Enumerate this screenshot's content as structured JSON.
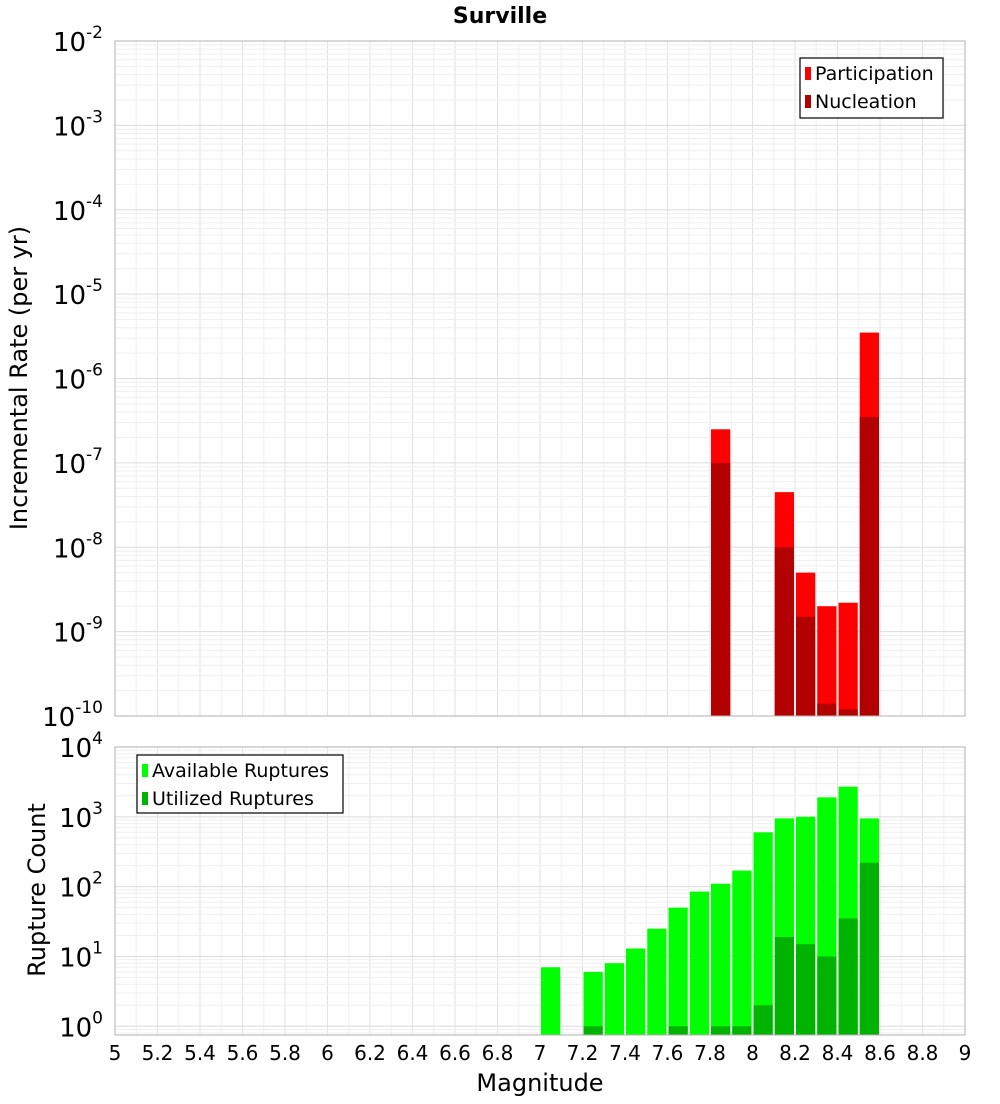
{
  "chart_data": [
    {
      "type": "bar",
      "title": "Surville",
      "xlabel": "",
      "ylabel": "Incremental Rate (per yr)",
      "yscale": "log",
      "ylim": [
        1e-10,
        0.01
      ],
      "xlim": [
        5,
        9
      ],
      "bin_width": 0.1,
      "legend_position": "top-right",
      "y_tick_labels": [
        {
          "base": "10",
          "exp": "-10",
          "value": 1e-10
        },
        {
          "base": "10",
          "exp": "-9",
          "value": 1e-09
        },
        {
          "base": "10",
          "exp": "-8",
          "value": 1e-08
        },
        {
          "base": "10",
          "exp": "-7",
          "value": 1e-07
        },
        {
          "base": "10",
          "exp": "-6",
          "value": 1e-06
        },
        {
          "base": "10",
          "exp": "-5",
          "value": 1e-05
        },
        {
          "base": "10",
          "exp": "-4",
          "value": 0.0001
        },
        {
          "base": "10",
          "exp": "-3",
          "value": 0.001
        },
        {
          "base": "10",
          "exp": "-2",
          "value": 0.01
        }
      ],
      "series": [
        {
          "name": "Participation",
          "color": "#ff0000",
          "x": [
            7.85,
            8.15,
            8.25,
            8.35,
            8.45,
            8.55
          ],
          "values": [
            2.5e-07,
            4.5e-08,
            5e-09,
            2e-09,
            2.2e-09,
            3.5e-06
          ]
        },
        {
          "name": "Nucleation",
          "color": "#b30000",
          "x": [
            7.85,
            8.15,
            8.25,
            8.35,
            8.45,
            8.55
          ],
          "values": [
            1e-07,
            1e-08,
            1.5e-09,
            1.4e-10,
            1.2e-10,
            3.5e-07
          ]
        }
      ]
    },
    {
      "type": "bar",
      "title": "",
      "xlabel": "Magnitude",
      "ylabel": "Rupture Count",
      "yscale": "log",
      "ylim": [
        0.75,
        10000
      ],
      "xlim": [
        5,
        9
      ],
      "bin_width": 0.1,
      "legend_position": "top-left",
      "x_tick_labels": [
        "5",
        "5.2",
        "5.4",
        "5.6",
        "5.8",
        "6",
        "6.2",
        "6.4",
        "6.6",
        "6.8",
        "7",
        "7.2",
        "7.4",
        "7.6",
        "7.8",
        "8",
        "8.2",
        "8.4",
        "8.6",
        "8.8",
        "9"
      ],
      "y_tick_labels": [
        {
          "base": "10",
          "exp": "0",
          "value": 1
        },
        {
          "base": "10",
          "exp": "1",
          "value": 10
        },
        {
          "base": "10",
          "exp": "2",
          "value": 100
        },
        {
          "base": "10",
          "exp": "3",
          "value": 1000
        },
        {
          "base": "10",
          "exp": "4",
          "value": 10000
        }
      ],
      "series": [
        {
          "name": "Available Ruptures",
          "color": "#00ff00",
          "x": [
            7.05,
            7.25,
            7.35,
            7.45,
            7.55,
            7.65,
            7.75,
            7.85,
            7.95,
            8.05,
            8.15,
            8.25,
            8.35,
            8.45,
            8.55
          ],
          "values": [
            7,
            6,
            8,
            13,
            25,
            50,
            85,
            110,
            170,
            600,
            950,
            1000,
            1900,
            2700,
            950
          ]
        },
        {
          "name": "Utilized Ruptures",
          "color": "#00b300",
          "x": [
            7.25,
            7.65,
            7.85,
            7.95,
            8.05,
            8.15,
            8.25,
            8.35,
            8.45,
            8.55
          ],
          "values": [
            1,
            1,
            1,
            1,
            2,
            19,
            15,
            10,
            35,
            220
          ]
        }
      ]
    }
  ]
}
